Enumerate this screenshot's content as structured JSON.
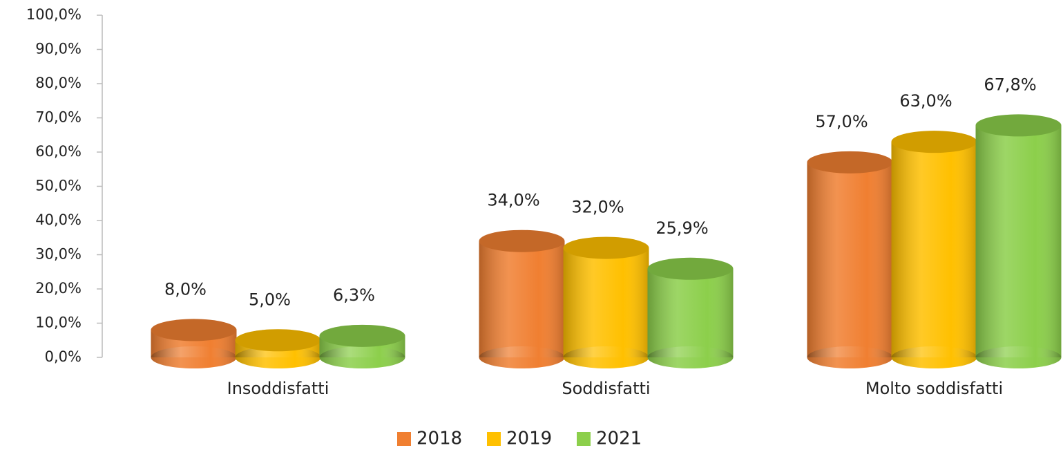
{
  "chart_data": {
    "type": "bar3d",
    "categories": [
      "Insoddisfatti",
      "Soddisfatti",
      "Molto soddisfatti"
    ],
    "series": [
      {
        "name": "2018",
        "color": "#f07f31",
        "values": [
          8.0,
          34.0,
          57.0
        ],
        "value_labels": [
          "8,0%",
          "34,0%",
          "57,0%"
        ]
      },
      {
        "name": "2019",
        "color": "#ffc000",
        "values": [
          5.0,
          32.0,
          63.0
        ],
        "value_labels": [
          "5,0%",
          "32,0%",
          "63,0%"
        ]
      },
      {
        "name": "2021",
        "color": "#8ccf4b",
        "values": [
          6.3,
          25.9,
          67.8
        ],
        "value_labels": [
          "6,3%",
          "25,9%",
          "67,8%"
        ]
      }
    ],
    "ylim": [
      0,
      100
    ],
    "yticks": [
      {
        "value": 0,
        "label": "0,0%"
      },
      {
        "value": 10,
        "label": "10,0%"
      },
      {
        "value": 20,
        "label": "20,0%"
      },
      {
        "value": 30,
        "label": "30,0%"
      },
      {
        "value": 40,
        "label": "40,0%"
      },
      {
        "value": 50,
        "label": "50,0%"
      },
      {
        "value": 60,
        "label": "60,0%"
      },
      {
        "value": 70,
        "label": "70,0%"
      },
      {
        "value": 80,
        "label": "80,0%"
      },
      {
        "value": 90,
        "label": "90,0%"
      },
      {
        "value": 100,
        "label": "100,0%"
      }
    ],
    "grid": false,
    "legend": "bottom"
  }
}
